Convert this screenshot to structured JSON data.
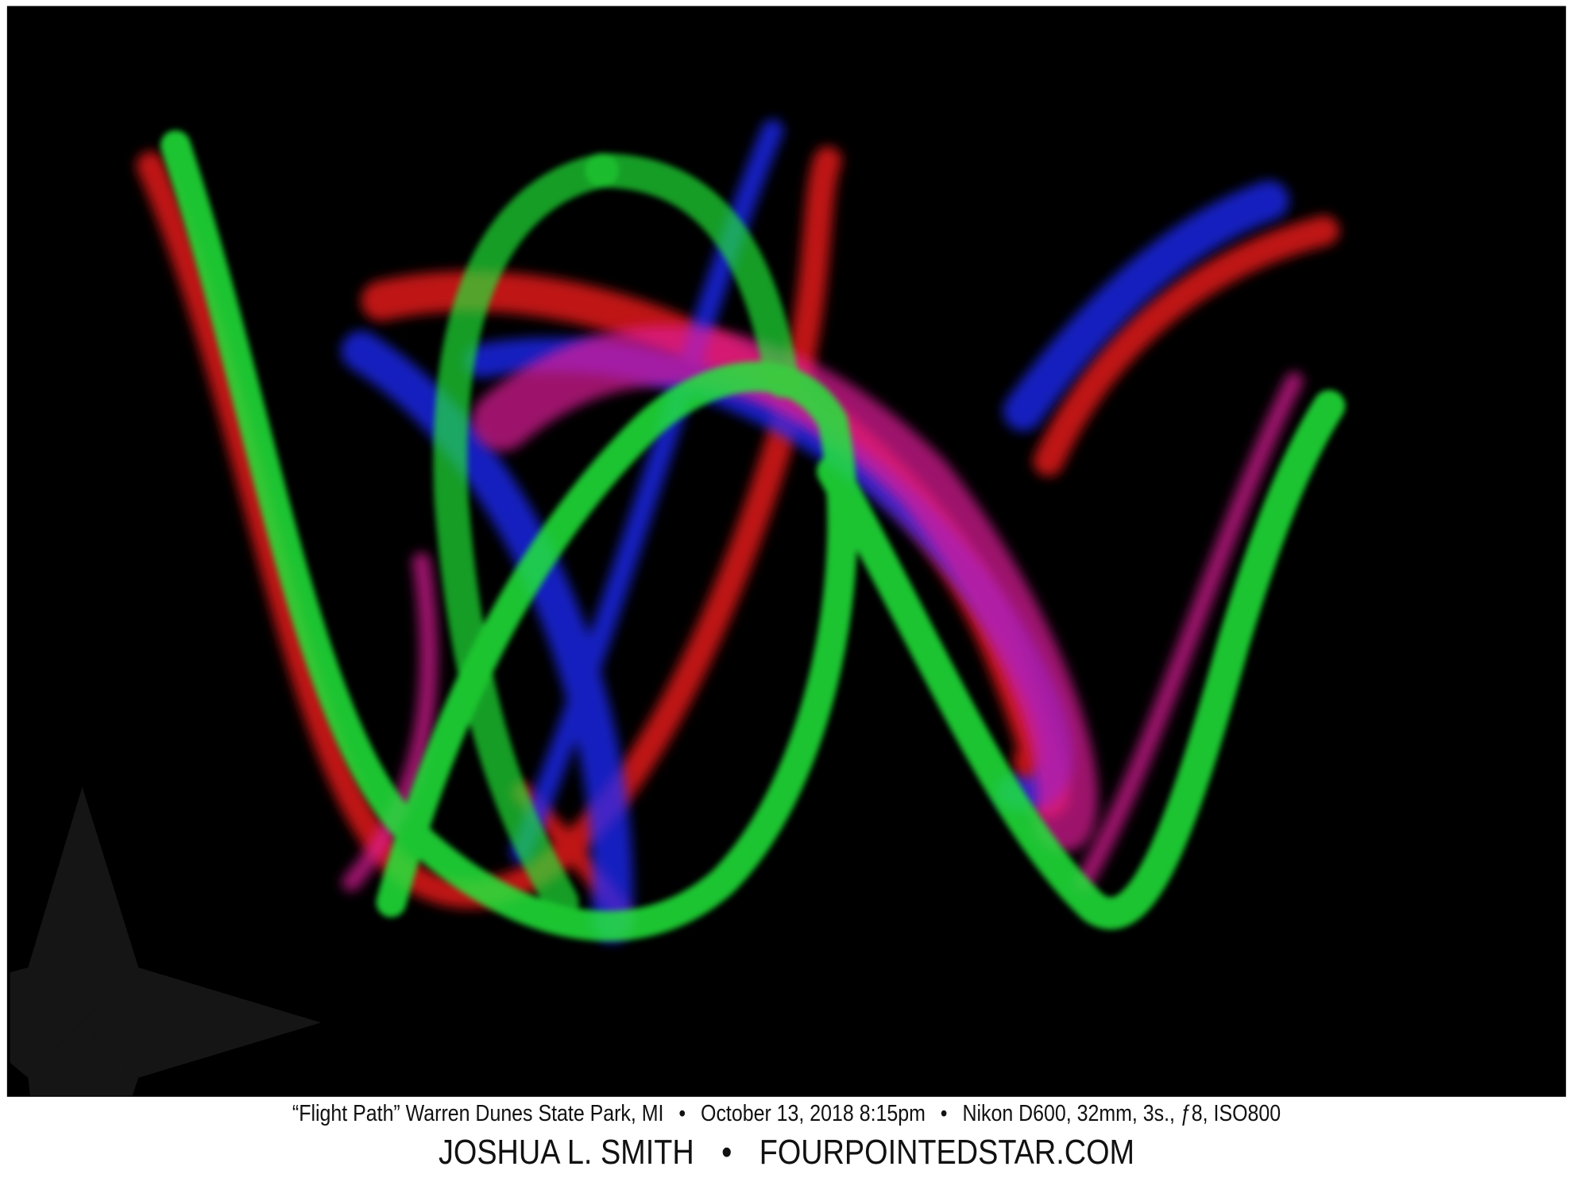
{
  "photo": {
    "subject": "light painting trails",
    "colors": {
      "green": "#22e83a",
      "red": "#ff1a1a",
      "blue": "#1a2cff",
      "magenta": "#e01a9a",
      "background": "#000000"
    },
    "watermark_icon": "four-pointed-star-logo"
  },
  "caption": {
    "title": "“Flight Path” Warren Dunes State Park, MI",
    "date": "October 13, 2018 8:15pm",
    "camera": "Nikon D600, 32mm, 3s., ƒ8, ISO800",
    "separator": "•"
  },
  "credit": {
    "author": "JOSHUA L. SMITH",
    "website": "FOURPOINTEDSTAR.COM",
    "separator": "•"
  }
}
